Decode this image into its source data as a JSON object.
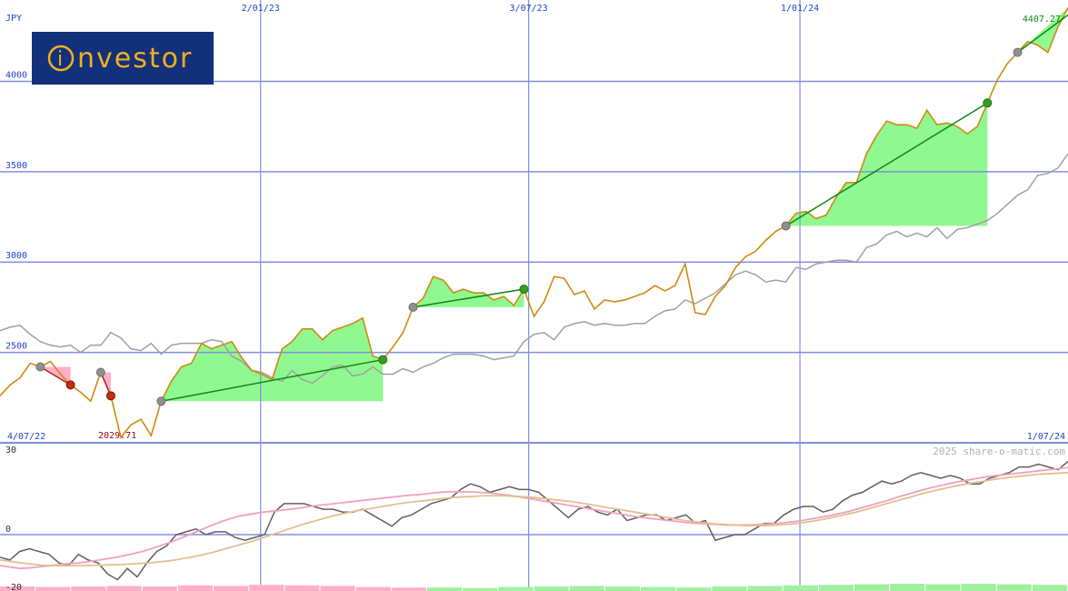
{
  "logo": {
    "text": "nvestor",
    "initial": "i"
  },
  "watermark": "2025 share-o-matic.com",
  "chart_data": [
    {
      "type": "line",
      "panel": "price",
      "currency_label": "JPY",
      "ylim": [
        2000,
        4450
      ],
      "y_ticks": [
        {
          "value": 4000,
          "label": "4000"
        },
        {
          "value": 3500,
          "label": "3500"
        },
        {
          "value": 3000,
          "label": "3000"
        },
        {
          "value": 2500,
          "label": "2500"
        }
      ],
      "x_ticks_top": [
        {
          "label": "2/01/23",
          "position": 0.244
        },
        {
          "label": "3/07/23",
          "position": 0.495
        },
        {
          "label": "1/01/24",
          "position": 0.749
        }
      ],
      "start_date_label": "4/07/22",
      "end_date_label": "1/07/24",
      "last_value_label": "4407.27",
      "low_value_label": "2029.71",
      "grid": true,
      "price_series": [
        2260,
        2320,
        2360,
        2440,
        2420,
        2450,
        2380,
        2320,
        2280,
        2230,
        2390,
        2260,
        2030,
        2100,
        2130,
        2040,
        2230,
        2340,
        2420,
        2440,
        2550,
        2520,
        2540,
        2560,
        2470,
        2400,
        2380,
        2350,
        2520,
        2560,
        2630,
        2630,
        2570,
        2620,
        2640,
        2660,
        2690,
        2480,
        2460,
        2530,
        2610,
        2750,
        2800,
        2920,
        2900,
        2830,
        2850,
        2830,
        2830,
        2790,
        2810,
        2760,
        2850,
        2700,
        2780,
        2920,
        2910,
        2820,
        2840,
        2740,
        2790,
        2780,
        2790,
        2810,
        2830,
        2870,
        2840,
        2870,
        2990,
        2720,
        2710,
        2810,
        2870,
        2970,
        3030,
        3060,
        3120,
        3170,
        3200,
        3270,
        3280,
        3240,
        3260,
        3360,
        3440,
        3440,
        3600,
        3700,
        3780,
        3760,
        3760,
        3740,
        3840,
        3760,
        3770,
        3750,
        3710,
        3750,
        3880,
        4010,
        4100,
        4160,
        4220,
        4200,
        4160,
        4300,
        4407.27
      ],
      "benchmark_series": [
        2620,
        2640,
        2650,
        2600,
        2560,
        2540,
        2530,
        2540,
        2500,
        2540,
        2540,
        2610,
        2580,
        2520,
        2510,
        2550,
        2490,
        2540,
        2550,
        2550,
        2550,
        2570,
        2560,
        2480,
        2450,
        2400,
        2390,
        2360,
        2340,
        2400,
        2350,
        2330,
        2370,
        2420,
        2430,
        2370,
        2380,
        2420,
        2380,
        2380,
        2410,
        2390,
        2420,
        2440,
        2470,
        2490,
        2490,
        2490,
        2480,
        2460,
        2470,
        2480,
        2560,
        2600,
        2610,
        2570,
        2640,
        2660,
        2670,
        2650,
        2660,
        2650,
        2650,
        2660,
        2660,
        2700,
        2730,
        2740,
        2790,
        2770,
        2800,
        2830,
        2880,
        2930,
        2950,
        2930,
        2890,
        2900,
        2890,
        2970,
        2960,
        2990,
        3000,
        3010,
        3010,
        3000,
        3080,
        3100,
        3150,
        3170,
        3140,
        3160,
        3140,
        3190,
        3130,
        3180,
        3190,
        3210,
        3230,
        3270,
        3320,
        3370,
        3400,
        3480,
        3490,
        3520,
        3600
      ],
      "trades": [
        {
          "type": "loss",
          "entry_index": 4,
          "exit_index": 7
        },
        {
          "type": "loss",
          "entry_index": 10,
          "exit_index": 11
        },
        {
          "type": "win",
          "entry_index": 16,
          "exit_index": 38
        },
        {
          "type": "win",
          "entry_index": 41,
          "exit_index": 52
        },
        {
          "type": "win",
          "entry_index": 78,
          "exit_index": 98
        },
        {
          "type": "win",
          "entry_index": 101,
          "exit_index": 108
        }
      ],
      "colors": {
        "price": "#d08a10",
        "benchmark": "#a0a0a0",
        "win_fill": "#90f890",
        "win_line": "#108810",
        "loss_fill": "#ffb0c8",
        "loss_line": "#c02020",
        "grid": "#8090e0",
        "axis_text": "#2244cc"
      }
    },
    {
      "type": "line",
      "panel": "oscillator",
      "ylim": [
        -20,
        30
      ],
      "y_ticks": [
        {
          "value": 30,
          "label": "30"
        },
        {
          "value": 0,
          "label": "0"
        },
        {
          "value": -20,
          "label": "-20"
        }
      ],
      "series": [
        {
          "role": "oscillator",
          "color": "#606060",
          "values": [
            -8,
            -9,
            -6,
            -5,
            -6,
            -7,
            -10,
            -11,
            -7,
            -9,
            -10,
            -14,
            -16,
            -12,
            -15,
            -10,
            -6,
            -4,
            0,
            1,
            2,
            0,
            1,
            1,
            -1,
            -2,
            -1,
            0,
            8,
            11,
            11,
            11,
            10,
            9,
            9,
            8,
            8,
            9,
            7,
            5,
            3,
            6,
            7,
            9,
            11,
            12,
            13,
            16,
            18,
            17,
            15,
            16,
            17,
            16,
            16,
            15,
            12,
            9,
            6,
            9,
            10,
            8,
            7,
            9,
            5,
            6,
            7,
            7,
            5,
            6,
            7,
            4,
            5,
            -2,
            -1,
            0,
            0,
            2,
            4,
            4,
            7,
            9,
            10,
            10,
            8,
            9,
            12,
            14,
            15,
            17,
            19,
            18,
            19,
            21,
            22,
            21,
            20,
            21,
            20,
            18,
            18,
            20,
            21,
            22,
            24,
            24,
            25,
            24,
            23,
            26
          ]
        },
        {
          "role": "signal",
          "color": "#f0a0c0",
          "values": [
            -11,
            -11.5,
            -12,
            -11.8,
            -11.4,
            -11,
            -10.6,
            -10.2,
            -10,
            -9.5,
            -9,
            -8.4,
            -7.8,
            -7,
            -6.2,
            -5.2,
            -4,
            -2.8,
            -1.4,
            0,
            1.5,
            3,
            4.4,
            5.6,
            6.6,
            7.2,
            7.8,
            8.2,
            8.6,
            9,
            9.4,
            10,
            10.4,
            10.8,
            11.2,
            11.6,
            12,
            12.4,
            12.8,
            13.2,
            13.6,
            14,
            14.2,
            14.6,
            15,
            15.2,
            15.2,
            15.2,
            15,
            14.8,
            14.4,
            14,
            13.4,
            12.8,
            12.2,
            11.6,
            11,
            10.4,
            9.8,
            9.2,
            8.6,
            8,
            7.4,
            6.8,
            6.2,
            5.8,
            5.4,
            5,
            4.6,
            4.2,
            4,
            3.8,
            3.6,
            3.4,
            3.4,
            3.4,
            3.6,
            3.8,
            4,
            4.4,
            4.8,
            5.4,
            6,
            6.6,
            7.4,
            8.2,
            9.2,
            10.2,
            11.2,
            12.2,
            13.4,
            14.4,
            15.4,
            16.4,
            17.2,
            18,
            18.8,
            19.4,
            20,
            20.6,
            21,
            21.4,
            21.8,
            22.2,
            22.6,
            23,
            23.4,
            23.8
          ]
        },
        {
          "role": "slow",
          "color": "#e0c090",
          "values": [
            -9,
            -9.5,
            -10,
            -10.4,
            -10.8,
            -11,
            -11,
            -11,
            -11,
            -10.9,
            -10.8,
            -10.7,
            -10.6,
            -10.4,
            -10.2,
            -10,
            -9.6,
            -9.2,
            -8.6,
            -8,
            -7.2,
            -6.4,
            -5.4,
            -4.4,
            -3.4,
            -2.4,
            -1.2,
            0,
            1.2,
            2.4,
            3.6,
            4.6,
            5.6,
            6.6,
            7.4,
            8.2,
            8.8,
            9.4,
            10,
            10.6,
            11.2,
            11.6,
            12,
            12.4,
            12.8,
            13.2,
            13.4,
            13.6,
            13.8,
            13.8,
            13.8,
            13.6,
            13.4,
            13.2,
            12.8,
            12.4,
            12,
            11.6,
            11,
            10.4,
            9.8,
            9.2,
            8.6,
            8,
            7.4,
            6.8,
            6.2,
            5.6,
            5,
            4.6,
            4.2,
            3.8,
            3.6,
            3.4,
            3.2,
            3.2,
            3.2,
            3.4,
            3.6,
            4,
            4.4,
            5,
            5.6,
            6.4,
            7.2,
            8,
            9,
            10,
            11,
            12,
            13,
            14,
            15,
            15.8,
            16.6,
            17.4,
            18,
            18.6,
            19.2,
            19.8,
            20.2,
            20.6,
            21,
            21.4,
            21.6,
            21.8,
            22
          ]
        }
      ],
      "volume_bars": [
        {
          "sign": "neg",
          "level": 0.5
        },
        {
          "sign": "neg",
          "level": 0.4
        },
        {
          "sign": "neg",
          "level": 0.5
        },
        {
          "sign": "neg",
          "level": 0.6
        },
        {
          "sign": "neg",
          "level": 0.5
        },
        {
          "sign": "neg",
          "level": 0.7
        },
        {
          "sign": "neg",
          "level": 0.6
        },
        {
          "sign": "neg",
          "level": 0.8
        },
        {
          "sign": "neg",
          "level": 0.7
        },
        {
          "sign": "neg",
          "level": 0.6
        },
        {
          "sign": "neg",
          "level": 0.4
        },
        {
          "sign": "neg",
          "level": 0.3
        },
        {
          "sign": "pos",
          "level": 0.3
        },
        {
          "sign": "pos",
          "level": 0.2
        },
        {
          "sign": "pos",
          "level": 0.4
        },
        {
          "sign": "pos",
          "level": 0.5
        },
        {
          "sign": "pos",
          "level": 0.6
        },
        {
          "sign": "pos",
          "level": 0.5
        },
        {
          "sign": "pos",
          "level": 0.4
        },
        {
          "sign": "pos",
          "level": 0.3
        },
        {
          "sign": "pos",
          "level": 0.5
        },
        {
          "sign": "pos",
          "level": 0.6
        },
        {
          "sign": "pos",
          "level": 0.7
        },
        {
          "sign": "pos",
          "level": 0.8
        },
        {
          "sign": "pos",
          "level": 0.9
        },
        {
          "sign": "pos",
          "level": 1.0
        },
        {
          "sign": "pos",
          "level": 0.9
        },
        {
          "sign": "pos",
          "level": 1.0
        },
        {
          "sign": "pos",
          "level": 0.9
        },
        {
          "sign": "pos",
          "level": 0.8
        }
      ]
    }
  ]
}
